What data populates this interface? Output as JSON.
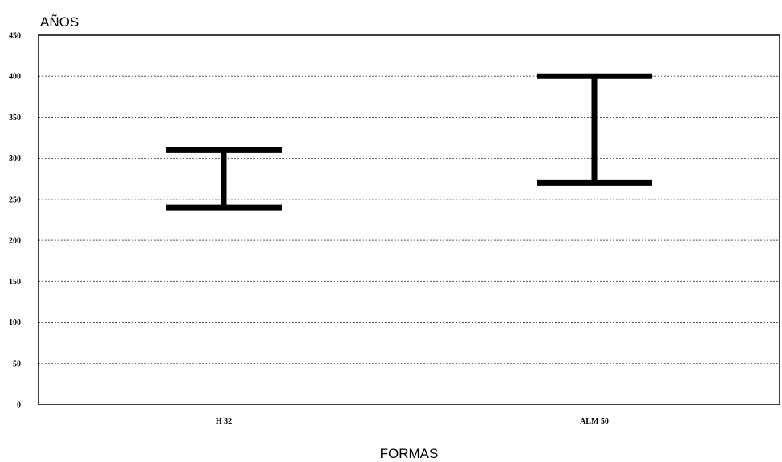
{
  "chart_data": {
    "type": "range",
    "ylabel": "AÑOS",
    "xlabel": "FORMAS",
    "ylim": [
      0,
      450
    ],
    "yticks": [
      0,
      50,
      100,
      150,
      200,
      250,
      300,
      350,
      400,
      450
    ],
    "grid": true,
    "categories": [
      "H 32",
      "ALM 50"
    ],
    "ranges": [
      {
        "category": "H 32",
        "low": 240,
        "high": 310
      },
      {
        "category": "ALM 50",
        "low": 270,
        "high": 400
      }
    ]
  }
}
